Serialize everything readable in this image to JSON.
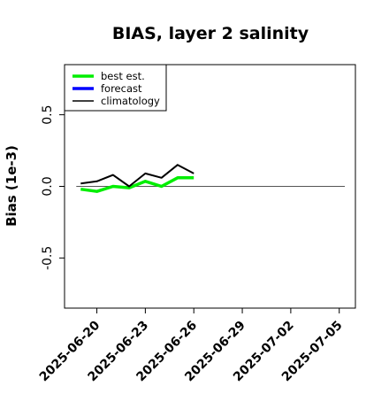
{
  "chart_data": {
    "type": "line",
    "title": "BIAS, layer 2 salinity",
    "ylabel": "Bias (1e-3)",
    "xlabel": "",
    "x_range": [
      "2025-06-18",
      "2025-07-06"
    ],
    "ylim": [
      -0.85,
      0.85
    ],
    "yticks": [
      -0.5,
      0.0,
      0.5
    ],
    "ytick_labels": [
      "-0.5",
      "0.0",
      "0.5"
    ],
    "xticks": [
      "2025-06-20",
      "2025-06-23",
      "2025-06-26",
      "2025-06-29",
      "2025-07-02",
      "2025-07-05"
    ],
    "highlight_tick": "2025-06-26",
    "highlight_color": "#228B22",
    "zero_line": true,
    "grid": false,
    "legend_position": "top-left",
    "series": [
      {
        "name": "best est.",
        "color": "#00ee00",
        "x": [
          "2025-06-19",
          "2025-06-20",
          "2025-06-21",
          "2025-06-22",
          "2025-06-23",
          "2025-06-24",
          "2025-06-25",
          "2025-06-26"
        ],
        "values": [
          -0.02,
          -0.035,
          0.0,
          -0.01,
          0.035,
          0.0,
          0.06,
          0.06
        ]
      },
      {
        "name": "forecast",
        "color": "#0000ff",
        "x": [],
        "values": []
      },
      {
        "name": "climatology",
        "color": "#000000",
        "x": [
          "2025-06-19",
          "2025-06-20",
          "2025-06-21",
          "2025-06-22",
          "2025-06-23",
          "2025-06-24",
          "2025-06-25",
          "2025-06-26"
        ],
        "values": [
          0.02,
          0.035,
          0.08,
          0.0,
          0.09,
          0.06,
          0.15,
          0.09
        ]
      }
    ]
  }
}
